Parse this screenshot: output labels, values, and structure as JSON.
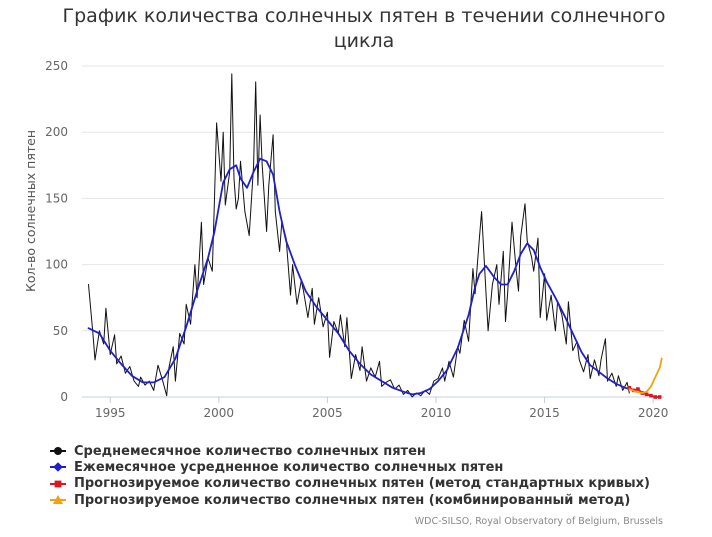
{
  "chart_data": {
    "type": "line",
    "title": "График количества солнечных пятен в течении солнечного цикла",
    "ylabel": "Кол-во солнечных пятен",
    "xlabel": "",
    "xlim": [
      1993.7,
      2020.5
    ],
    "ylim": [
      0,
      250
    ],
    "x_ticks": [
      1995,
      2000,
      2005,
      2010,
      2015,
      2020
    ],
    "y_ticks": [
      0,
      50,
      100,
      150,
      200,
      250
    ],
    "grid": "horizontal",
    "legend_position": "bottom-left",
    "series": [
      {
        "name": "Среднемесячное количество солнечных пятен",
        "color": "#111111",
        "marker": "circle",
        "points": [
          [
            1994.0,
            85
          ],
          [
            1994.2,
            48
          ],
          [
            1994.3,
            28
          ],
          [
            1994.5,
            50
          ],
          [
            1994.7,
            40
          ],
          [
            1994.8,
            67
          ],
          [
            1995.0,
            32
          ],
          [
            1995.2,
            47
          ],
          [
            1995.3,
            25
          ],
          [
            1995.5,
            31
          ],
          [
            1995.7,
            18
          ],
          [
            1995.9,
            23
          ],
          [
            1996.1,
            12
          ],
          [
            1996.3,
            8
          ],
          [
            1996.4,
            15
          ],
          [
            1996.6,
            9
          ],
          [
            1996.8,
            12
          ],
          [
            1997.0,
            5
          ],
          [
            1997.2,
            24
          ],
          [
            1997.4,
            13
          ],
          [
            1997.6,
            1
          ],
          [
            1997.7,
            22
          ],
          [
            1997.9,
            38
          ],
          [
            1998.0,
            12
          ],
          [
            1998.2,
            48
          ],
          [
            1998.4,
            40
          ],
          [
            1998.5,
            70
          ],
          [
            1998.7,
            55
          ],
          [
            1998.9,
            100
          ],
          [
            1999.0,
            75
          ],
          [
            1999.2,
            132
          ],
          [
            1999.3,
            85
          ],
          [
            1999.5,
            105
          ],
          [
            1999.7,
            95
          ],
          [
            1999.8,
            150
          ],
          [
            1999.9,
            207
          ],
          [
            2000.1,
            163
          ],
          [
            2000.2,
            200
          ],
          [
            2000.3,
            145
          ],
          [
            2000.5,
            170
          ],
          [
            2000.6,
            244
          ],
          [
            2000.7,
            165
          ],
          [
            2000.8,
            142
          ],
          [
            2000.9,
            150
          ],
          [
            2001.0,
            178
          ],
          [
            2001.2,
            140
          ],
          [
            2001.4,
            122
          ],
          [
            2001.6,
            175
          ],
          [
            2001.7,
            238
          ],
          [
            2001.8,
            160
          ],
          [
            2001.9,
            213
          ],
          [
            2002.0,
            175
          ],
          [
            2002.2,
            125
          ],
          [
            2002.3,
            160
          ],
          [
            2002.5,
            198
          ],
          [
            2002.6,
            140
          ],
          [
            2002.8,
            110
          ],
          [
            2002.9,
            132
          ],
          [
            2003.1,
            120
          ],
          [
            2003.3,
            77
          ],
          [
            2003.4,
            100
          ],
          [
            2003.6,
            70
          ],
          [
            2003.8,
            88
          ],
          [
            2003.9,
            80
          ],
          [
            2004.1,
            60
          ],
          [
            2004.3,
            82
          ],
          [
            2004.4,
            55
          ],
          [
            2004.6,
            75
          ],
          [
            2004.8,
            53
          ],
          [
            2005.0,
            64
          ],
          [
            2005.1,
            30
          ],
          [
            2005.3,
            57
          ],
          [
            2005.5,
            48
          ],
          [
            2005.6,
            62
          ],
          [
            2005.8,
            38
          ],
          [
            2005.9,
            60
          ],
          [
            2006.1,
            14
          ],
          [
            2006.3,
            32
          ],
          [
            2006.5,
            20
          ],
          [
            2006.6,
            38
          ],
          [
            2006.8,
            12
          ],
          [
            2007.0,
            22
          ],
          [
            2007.2,
            15
          ],
          [
            2007.4,
            27
          ],
          [
            2007.5,
            8
          ],
          [
            2007.7,
            11
          ],
          [
            2007.9,
            13
          ],
          [
            2008.1,
            6
          ],
          [
            2008.3,
            9
          ],
          [
            2008.5,
            2
          ],
          [
            2008.7,
            5
          ],
          [
            2008.9,
            0
          ],
          [
            2009.1,
            3
          ],
          [
            2009.3,
            1
          ],
          [
            2009.5,
            5
          ],
          [
            2009.7,
            2
          ],
          [
            2009.9,
            12
          ],
          [
            2010.1,
            14
          ],
          [
            2010.3,
            22
          ],
          [
            2010.4,
            12
          ],
          [
            2010.6,
            27
          ],
          [
            2010.8,
            15
          ],
          [
            2011.0,
            38
          ],
          [
            2011.1,
            33
          ],
          [
            2011.3,
            58
          ],
          [
            2011.5,
            42
          ],
          [
            2011.7,
            97
          ],
          [
            2011.8,
            78
          ],
          [
            2012.0,
            120
          ],
          [
            2012.1,
            140
          ],
          [
            2012.3,
            80
          ],
          [
            2012.4,
            50
          ],
          [
            2012.6,
            85
          ],
          [
            2012.8,
            100
          ],
          [
            2012.9,
            70
          ],
          [
            2013.1,
            110
          ],
          [
            2013.2,
            57
          ],
          [
            2013.3,
            78
          ],
          [
            2013.5,
            132
          ],
          [
            2013.7,
            95
          ],
          [
            2013.8,
            80
          ],
          [
            2013.9,
            121
          ],
          [
            2014.1,
            146
          ],
          [
            2014.2,
            118
          ],
          [
            2014.4,
            106
          ],
          [
            2014.5,
            95
          ],
          [
            2014.7,
            120
          ],
          [
            2014.8,
            60
          ],
          [
            2015.0,
            93
          ],
          [
            2015.1,
            58
          ],
          [
            2015.3,
            77
          ],
          [
            2015.5,
            50
          ],
          [
            2015.6,
            72
          ],
          [
            2015.8,
            62
          ],
          [
            2016.0,
            40
          ],
          [
            2016.1,
            72
          ],
          [
            2016.3,
            35
          ],
          [
            2016.5,
            42
          ],
          [
            2016.6,
            28
          ],
          [
            2016.8,
            19
          ],
          [
            2017.0,
            32
          ],
          [
            2017.1,
            14
          ],
          [
            2017.3,
            28
          ],
          [
            2017.5,
            16
          ],
          [
            2017.6,
            28
          ],
          [
            2017.8,
            44
          ],
          [
            2017.9,
            12
          ],
          [
            2018.1,
            18
          ],
          [
            2018.3,
            8
          ],
          [
            2018.4,
            16
          ],
          [
            2018.6,
            5
          ],
          [
            2018.8,
            11
          ],
          [
            2018.9,
            3
          ]
        ]
      },
      {
        "name": "Ежемесячное усредненное количество солнечных пятен",
        "color": "#1f1fce",
        "marker": "diamond",
        "points": [
          [
            1994.0,
            52
          ],
          [
            1994.5,
            48
          ],
          [
            1995.0,
            35
          ],
          [
            1995.5,
            25
          ],
          [
            1996.0,
            16
          ],
          [
            1996.5,
            11
          ],
          [
            1997.0,
            11
          ],
          [
            1997.5,
            15
          ],
          [
            1998.0,
            29
          ],
          [
            1998.5,
            53
          ],
          [
            1999.0,
            80
          ],
          [
            1999.5,
            105
          ],
          [
            1999.8,
            125
          ],
          [
            2000.2,
            162
          ],
          [
            2000.5,
            172
          ],
          [
            2000.8,
            175
          ],
          [
            2001.0,
            165
          ],
          [
            2001.3,
            158
          ],
          [
            2001.6,
            170
          ],
          [
            2001.9,
            180
          ],
          [
            2002.2,
            178
          ],
          [
            2002.5,
            168
          ],
          [
            2002.8,
            140
          ],
          [
            2003.1,
            118
          ],
          [
            2003.5,
            100
          ],
          [
            2004.0,
            80
          ],
          [
            2004.5,
            68
          ],
          [
            2005.0,
            58
          ],
          [
            2005.5,
            48
          ],
          [
            2006.0,
            35
          ],
          [
            2006.5,
            25
          ],
          [
            2007.0,
            17
          ],
          [
            2007.5,
            12
          ],
          [
            2008.0,
            7
          ],
          [
            2008.5,
            4
          ],
          [
            2008.9,
            2
          ],
          [
            2009.3,
            3
          ],
          [
            2009.7,
            6
          ],
          [
            2010.1,
            12
          ],
          [
            2010.5,
            20
          ],
          [
            2011.0,
            37
          ],
          [
            2011.5,
            62
          ],
          [
            2011.8,
            83
          ],
          [
            2012.0,
            93
          ],
          [
            2012.3,
            99
          ],
          [
            2012.7,
            90
          ],
          [
            2013.0,
            85
          ],
          [
            2013.3,
            85
          ],
          [
            2013.6,
            95
          ],
          [
            2013.9,
            108
          ],
          [
            2014.2,
            116
          ],
          [
            2014.5,
            111
          ],
          [
            2014.8,
            98
          ],
          [
            2015.1,
            87
          ],
          [
            2015.5,
            75
          ],
          [
            2015.9,
            62
          ],
          [
            2016.3,
            48
          ],
          [
            2016.7,
            34
          ],
          [
            2017.1,
            24
          ],
          [
            2017.5,
            19
          ],
          [
            2017.9,
            14
          ],
          [
            2018.3,
            10
          ],
          [
            2018.7,
            7
          ],
          [
            2018.9,
            6
          ]
        ]
      },
      {
        "name": "Прогнозируемое количество солнечных пятен (метод стандартных кривых)",
        "color": "#e0141e",
        "marker": "square",
        "points": [
          [
            2018.9,
            7
          ],
          [
            2019.1,
            5
          ],
          [
            2019.3,
            6
          ],
          [
            2019.5,
            3
          ],
          [
            2019.7,
            2
          ],
          [
            2019.9,
            1
          ],
          [
            2020.1,
            0
          ],
          [
            2020.3,
            0
          ]
        ]
      },
      {
        "name": "Прогнозируемое количество солнечных пятен (комбинированный метод)",
        "color": "#f0a30a",
        "marker": "triangle",
        "points": [
          [
            2018.9,
            6
          ],
          [
            2019.2,
            4
          ],
          [
            2019.5,
            3
          ],
          [
            2019.7,
            4
          ],
          [
            2019.9,
            8
          ],
          [
            2020.1,
            15
          ],
          [
            2020.3,
            22
          ],
          [
            2020.4,
            29
          ]
        ]
      }
    ]
  },
  "credit": "WDC-SILSO, Royal Observatory of Belgium, Brussels"
}
